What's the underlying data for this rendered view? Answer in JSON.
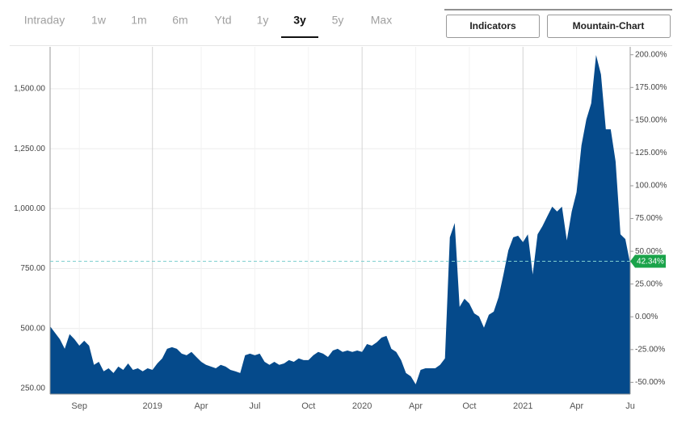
{
  "tabs": {
    "items": [
      "Intraday",
      "1w",
      "1m",
      "6m",
      "Ytd",
      "1y",
      "3y",
      "5y",
      "Max"
    ],
    "selected_index": 6
  },
  "buttons": [
    "Indicators",
    "Mountain-Chart"
  ],
  "chart_data": {
    "type": "area",
    "categories": [
      null,
      null,
      null,
      null,
      null,
      null,
      "Sep",
      null,
      null,
      null,
      null,
      null,
      null,
      null,
      null,
      null,
      null,
      null,
      null,
      null,
      null,
      "2019",
      null,
      null,
      null,
      null,
      null,
      null,
      null,
      null,
      null,
      "Apr",
      null,
      null,
      null,
      null,
      null,
      null,
      null,
      null,
      null,
      null,
      "Jul",
      null,
      null,
      null,
      null,
      null,
      null,
      null,
      null,
      null,
      null,
      "Oct",
      null,
      null,
      null,
      null,
      null,
      null,
      null,
      null,
      null,
      null,
      "2020",
      null,
      null,
      null,
      null,
      null,
      null,
      null,
      null,
      null,
      null,
      "Apr",
      null,
      null,
      null,
      null,
      null,
      null,
      null,
      null,
      null,
      null,
      "Oct",
      null,
      null,
      null,
      null,
      null,
      null,
      null,
      null,
      null,
      null,
      "2021",
      null,
      null,
      null,
      null,
      null,
      null,
      null,
      null,
      null,
      null,
      "Apr",
      null,
      null,
      null,
      null,
      null,
      null,
      null,
      null,
      null,
      null,
      "Ju"
    ],
    "series": [
      {
        "color": "#054a8b",
        "values": [
          509,
          482,
          455,
          415,
          476,
          455,
          428,
          449,
          428,
          348,
          361,
          321,
          334,
          314,
          341,
          327,
          354,
          327,
          334,
          321,
          334,
          327,
          354,
          375,
          415,
          422,
          415,
          395,
          388,
          402,
          381,
          361,
          348,
          341,
          334,
          348,
          341,
          327,
          321,
          314,
          388,
          395,
          388,
          395,
          361,
          348,
          361,
          348,
          354,
          368,
          361,
          375,
          368,
          368,
          388,
          402,
          395,
          381,
          408,
          415,
          402,
          408,
          402,
          408,
          402,
          435,
          428,
          442,
          462,
          469,
          415,
          402,
          368,
          314,
          300,
          267,
          327,
          334,
          334,
          334,
          348,
          375,
          880,
          940,
          590,
          624,
          604,
          563,
          550,
          503,
          557,
          570,
          631,
          725,
          826,
          880,
          887,
          860,
          893,
          725,
          893,
          927,
          968,
          1008,
          988,
          1008,
          867,
          988,
          1069,
          1264,
          1372,
          1439,
          1641,
          1560,
          1331,
          1331,
          1197,
          893,
          873,
          770
        ]
      }
    ],
    "ylim": [
      226,
      1675
    ],
    "yticks": [
      {
        "value": 250,
        "label": "250.00"
      },
      {
        "value": 500,
        "label": "500.00"
      },
      {
        "value": 750,
        "label": "750.00"
      },
      {
        "value": 1000,
        "label": "1,000.00"
      },
      {
        "value": 1250,
        "label": "1,250.00"
      },
      {
        "value": 1500,
        "label": "1,500.00"
      }
    ],
    "y2lim": [
      -59,
      206
    ],
    "y2ticks": [
      {
        "value": -50,
        "label": "-50.00%"
      },
      {
        "value": -25,
        "label": "-25.00%"
      },
      {
        "value": 0,
        "label": "0.00%"
      },
      {
        "value": 25,
        "label": "25.00%"
      },
      {
        "value": 50,
        "label": "50.00%"
      },
      {
        "value": 75,
        "label": "75.00%"
      },
      {
        "value": 100,
        "label": "100.00%"
      },
      {
        "value": 125,
        "label": "125.00%"
      },
      {
        "value": 150,
        "label": "150.00%"
      },
      {
        "value": 175,
        "label": "175.00%"
      },
      {
        "value": 200,
        "label": "200.00%"
      }
    ],
    "reference_line": {
      "value": 42.34,
      "label": "42.34%",
      "axis": "y2",
      "color": "#7fcfcf",
      "marker_color": "#1aa34a"
    },
    "grid": true
  }
}
